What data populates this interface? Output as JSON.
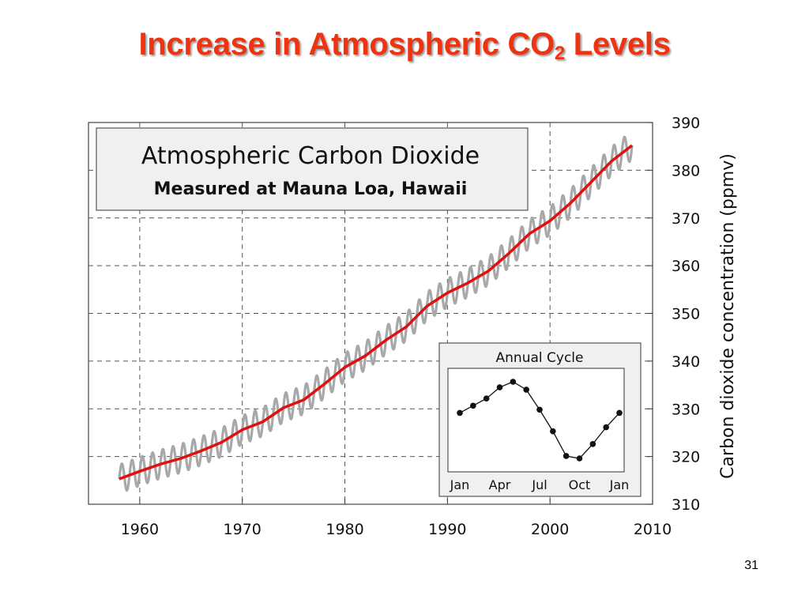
{
  "slide": {
    "title": "Increase in Atmospheric CO",
    "title_subscript": "2",
    "title_suffix": " Levels",
    "page_number": "31",
    "title_color": "#ee3311"
  },
  "chart_data": [
    {
      "type": "line",
      "title": "Atmospheric Carbon Dioxide",
      "subtitle": "Measured at Mauna Loa, Hawaii",
      "xlabel": "",
      "ylabel": "Carbon dioxide concentration (ppmv)",
      "xlim": [
        1955,
        2010
      ],
      "ylim": [
        310,
        390
      ],
      "xticks": [
        1960,
        1970,
        1980,
        1990,
        2000,
        2010
      ],
      "yticks": [
        310,
        320,
        330,
        340,
        350,
        360,
        370,
        380,
        390
      ],
      "grid": true,
      "y_axis_side": "right",
      "seasonal_amplitude": 3,
      "colors": {
        "trend": "#dd1111",
        "monthly": "#a8a8a8",
        "panel": "#f0f0f0"
      },
      "series": [
        {
          "x": [
            1958,
            1960,
            1962,
            1964,
            1966,
            1968,
            1970,
            1972,
            1974,
            1976,
            1978,
            1980,
            1982,
            1984,
            1986,
            1988,
            1990,
            1992,
            1994,
            1996,
            1998,
            2000,
            2002,
            2004,
            2006,
            2008
          ],
          "values": [
            315.3,
            316.9,
            318.4,
            319.6,
            321.2,
            323.0,
            325.6,
            327.3,
            330.2,
            331.9,
            335.2,
            338.7,
            341.1,
            344.4,
            347.2,
            351.5,
            354.3,
            356.4,
            358.9,
            362.6,
            366.7,
            369.4,
            373.1,
            377.5,
            381.9,
            385.2
          ]
        }
      ]
    },
    {
      "type": "line",
      "title": "Annual Cycle",
      "xlabel": "",
      "ylabel": "",
      "xticks": [
        "Jan",
        "Apr",
        "Jul",
        "Oct",
        "Jan"
      ],
      "x": [
        1,
        2,
        3,
        4,
        5,
        6,
        7,
        8,
        9,
        10,
        11,
        12,
        13
      ],
      "values": [
        0.1,
        1.0,
        1.9,
        3.3,
        4.0,
        3.0,
        0.5,
        -2.2,
        -5.3,
        -5.6,
        -3.8,
        -1.7,
        0.1
      ]
    }
  ]
}
